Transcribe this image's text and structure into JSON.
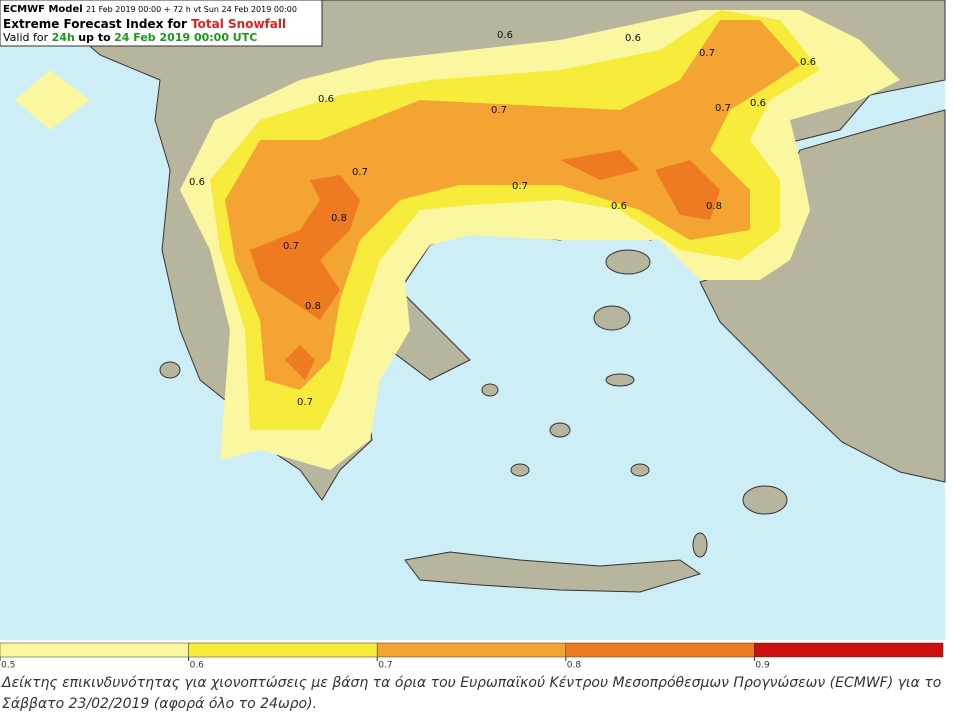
{
  "header": {
    "model": "ECMWF Model",
    "run": "21 Feb 2019 00:00 + 72 h vt Sun 24 Feb 2019 00:00",
    "title_prefix": "Extreme Forecast Index for",
    "title_field": "Total Snowfall",
    "valid_prefix": "Valid for",
    "valid_period": "24h",
    "valid_mid": "up to",
    "valid_time": "24 Feb 2019 00:00 UTC"
  },
  "contour_labels": [
    0.6,
    0.6,
    0.6,
    0.6,
    0.6,
    0.6,
    0.6,
    0.7,
    0.7,
    0.7,
    0.7,
    0.7,
    0.7,
    0.7,
    0.8,
    0.8,
    0.8
  ],
  "colorbar": {
    "lim": [
      0.5,
      1.0
    ],
    "ticks": [
      0.5,
      0.6,
      0.7,
      0.8,
      0.9
    ],
    "colors": [
      "#fbf7a0",
      "#f7eb3c",
      "#f4a433",
      "#ee7a22",
      "#cc1010"
    ]
  },
  "caption": "Δείκτης επικινδυνότητας για χιονοπτώσεις με βάση τα όρια του Ευρωπαϊκού Κέντρου Μεσοπρόθεσμων Προγνώσεων (ECMWF) για το Σάββατο 23/02/2019 (αφορά όλο το 24ωρο)."
}
